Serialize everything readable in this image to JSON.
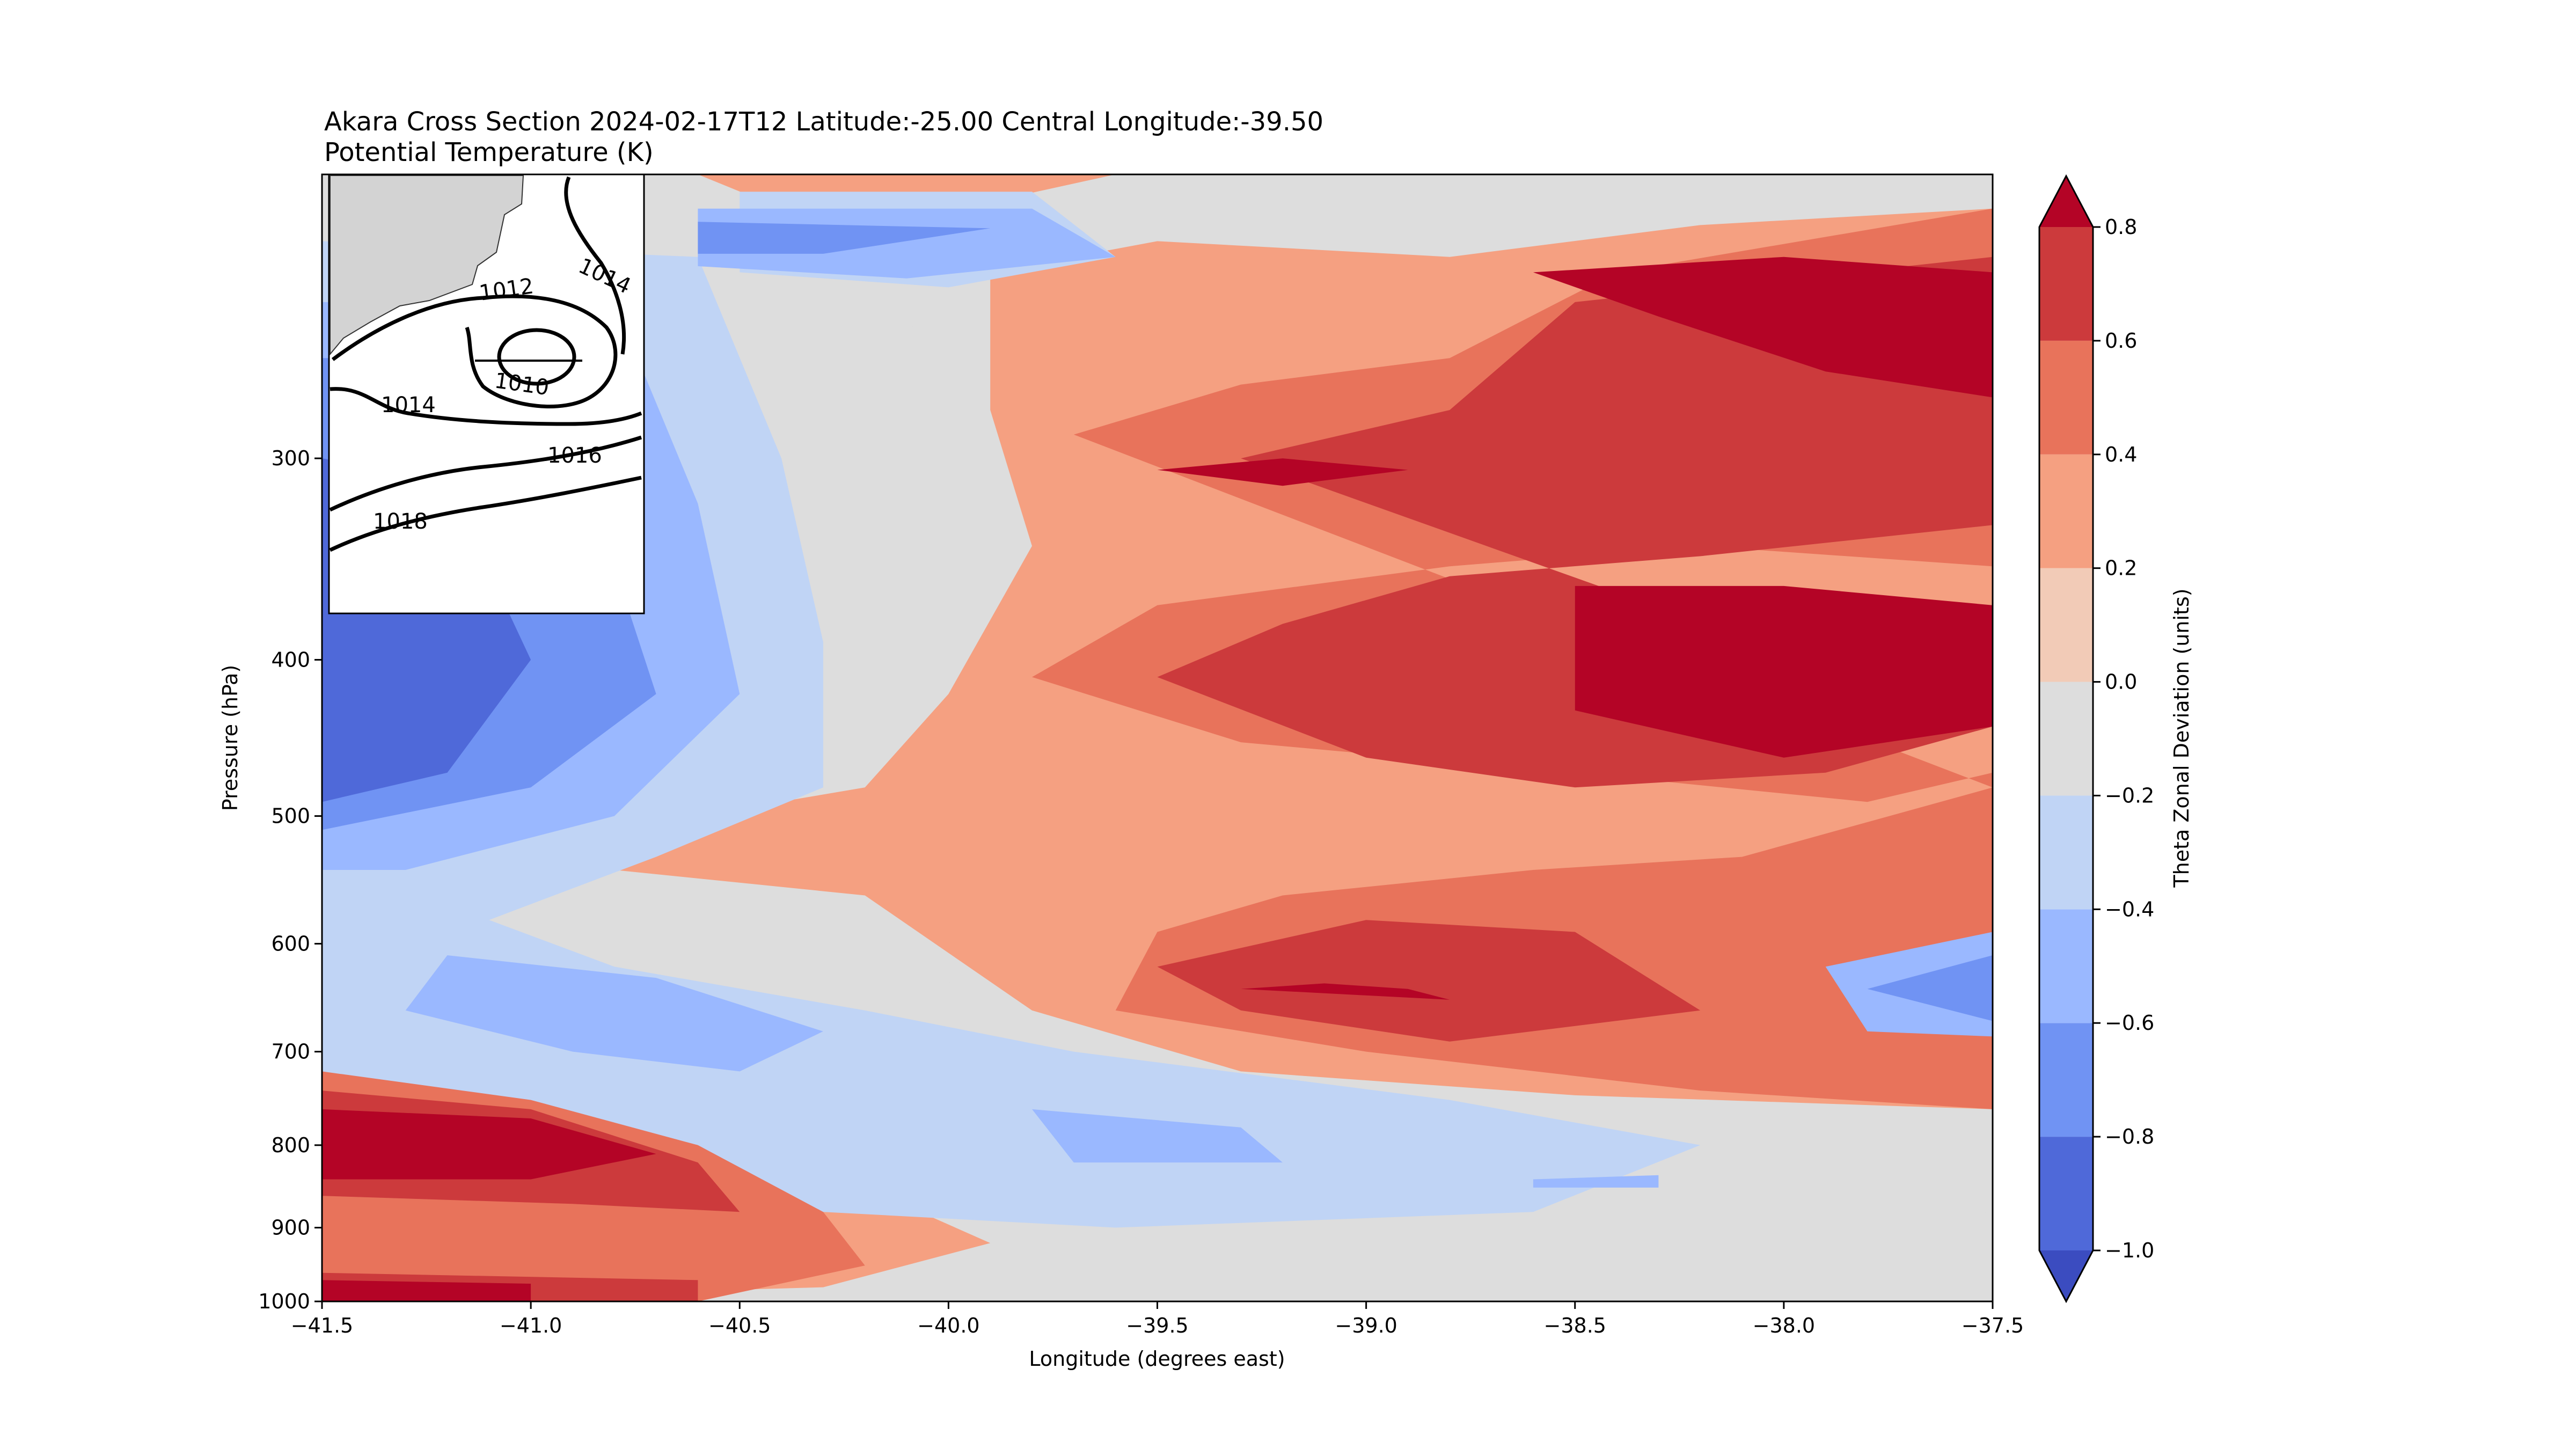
{
  "chart_data": {
    "type": "heatmap",
    "title": "Akara Cross Section 2024-02-17T12 Latitude:-25.00 Central Longitude:-39.50",
    "subtitle": "Potential Temperature (K)",
    "xlabel": "Longitude (degrees east)",
    "ylabel": "Pressure (hPa)",
    "xlim": [
      -41.5,
      -37.5
    ],
    "x_ticks": [
      -41.5,
      -41.0,
      -40.5,
      -40.0,
      -39.5,
      -39.0,
      -38.5,
      -38.0,
      -37.5
    ],
    "x_tick_labels": [
      "−41.5",
      "−41.0",
      "−40.5",
      "−40.0",
      "−39.5",
      "−39.0",
      "−38.5",
      "−38.0",
      "−37.5"
    ],
    "y_scale": "log",
    "y_inverted": true,
    "ylim": [
      1000,
      200
    ],
    "y_ticks": [
      300,
      400,
      500,
      600,
      700,
      800,
      900,
      1000
    ],
    "y_tick_labels": [
      "300",
      "400",
      "500",
      "600",
      "700",
      "800",
      "900",
      "1000"
    ],
    "colorbar": {
      "label": "Theta Zonal Deviation (units)",
      "levels": [
        -1.0,
        -0.8,
        -0.6,
        -0.4,
        -0.2,
        0.0,
        0.2,
        0.4,
        0.6,
        0.8
      ],
      "tick_labels": [
        "−1.0",
        "−0.8",
        "−0.6",
        "−0.4",
        "−0.2",
        "0.0",
        "0.2",
        "0.4",
        "0.6",
        "0.8"
      ],
      "extend": "both",
      "colors": [
        "#3b4cc0",
        "#4f69d9",
        "#7093f3",
        "#9ab8ff",
        "#c0d4f5",
        "#dddddd",
        "#f2cbb7",
        "#f5a081",
        "#e8735b",
        "#cc3a3c",
        "#b40426"
      ]
    },
    "features": [
      {
        "level": -1.0,
        "lon": -41.3,
        "p": 420
      },
      {
        "level": -0.8,
        "lon": -39.9,
        "p": 240
      },
      {
        "level": -0.6,
        "lon": -40.8,
        "p": 660
      },
      {
        "level": -0.8,
        "lon": -37.7,
        "p": 650
      },
      {
        "level": -0.6,
        "lon": -39.6,
        "p": 790
      },
      {
        "level": 0.8,
        "lon": -38.0,
        "p": 250
      },
      {
        "level": 0.8,
        "lon": -38.0,
        "p": 410
      },
      {
        "level": 0.8,
        "lon": -39.2,
        "p": 305
      },
      {
        "level": 0.8,
        "lon": -38.9,
        "p": 650
      },
      {
        "level": 0.8,
        "lon": -41.2,
        "p": 820
      },
      {
        "level": 0.6,
        "lon": -41.2,
        "p": 980
      }
    ],
    "inset": {
      "contour_labels": [
        "1014",
        "1012",
        "1010",
        "1014",
        "1016",
        "1018"
      ]
    }
  }
}
